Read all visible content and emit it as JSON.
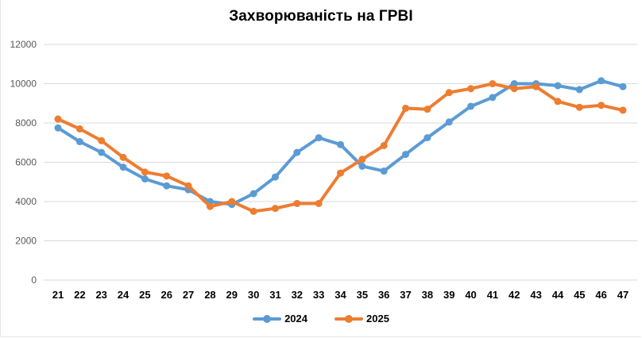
{
  "chart_data": {
    "type": "line",
    "title": "Захворюваність на ГРВІ",
    "xlabel": "",
    "ylabel": "",
    "categories": [
      "21",
      "22",
      "23",
      "24",
      "25",
      "26",
      "27",
      "28",
      "29",
      "30",
      "31",
      "32",
      "33",
      "34",
      "35",
      "36",
      "37",
      "38",
      "39",
      "40",
      "41",
      "42",
      "43",
      "44",
      "45",
      "46",
      "47"
    ],
    "series": [
      {
        "name": "2024",
        "color": "#5B9BD5",
        "values": [
          7750,
          7050,
          6500,
          5750,
          5150,
          4800,
          4600,
          4000,
          3850,
          4400,
          5250,
          6500,
          7250,
          6900,
          5800,
          5550,
          6400,
          7250,
          8050,
          8850,
          9300,
          10000,
          10000,
          9900,
          9700,
          10150,
          9850
        ]
      },
      {
        "name": "2025",
        "color": "#ED7D31",
        "values": [
          8200,
          7700,
          7100,
          6250,
          5500,
          5300,
          4800,
          3750,
          4000,
          3500,
          3650,
          3900,
          3900,
          5450,
          6150,
          6850,
          8750,
          8700,
          9550,
          9750,
          10000,
          9750,
          9850,
          9100,
          8800,
          8900,
          8650
        ]
      }
    ],
    "ylim": [
      0,
      12000
    ],
    "yticks": [
      0,
      2000,
      4000,
      6000,
      8000,
      10000,
      12000
    ],
    "grid": true,
    "legend_position": "bottom"
  },
  "legend": {
    "items": [
      {
        "label": "2024",
        "color": "#5B9BD5"
      },
      {
        "label": "2025",
        "color": "#ED7D31"
      }
    ]
  }
}
